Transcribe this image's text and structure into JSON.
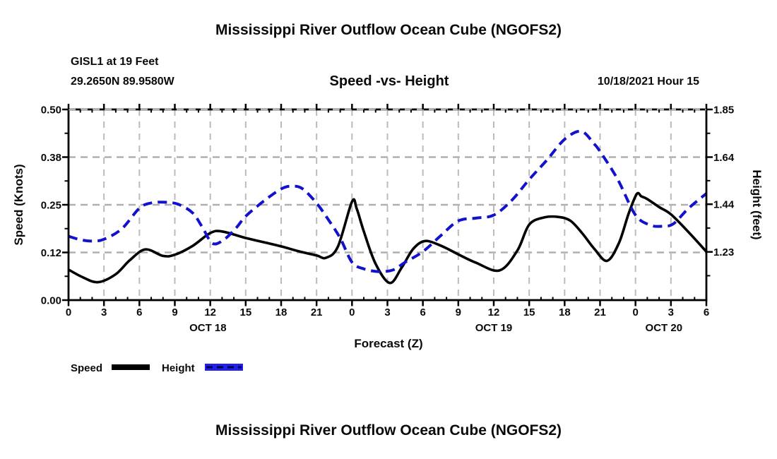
{
  "header": {
    "title": "Mississippi River Outflow Ocean Cube (NGOFS2)",
    "station": "GISL1 at 19 Feet",
    "coordinates": "29.2650N  89.9580W",
    "subtitle": "Speed -vs- Height",
    "datetime": "10/18/2021 Hour 15"
  },
  "footer": {
    "next_chart_title": "Mississippi River Outflow Ocean Cube (NGOFS2)"
  },
  "chart_data": {
    "type": "line",
    "title": "Speed -vs- Height",
    "xlabel": "Forecast (Z)",
    "grid": {
      "show": true,
      "color": "#b0b0b0"
    },
    "x_axis": {
      "start": "OCT 18 00Z",
      "end": "OCT 20 06Z",
      "tick_step_hours": 3,
      "minor_tick_step_hours": 1,
      "ticks": [
        {
          "t": 0,
          "label": "0"
        },
        {
          "t": 3,
          "label": "3"
        },
        {
          "t": 6,
          "label": "6"
        },
        {
          "t": 9,
          "label": "9"
        },
        {
          "t": 12,
          "label": "12"
        },
        {
          "t": 15,
          "label": "15"
        },
        {
          "t": 18,
          "label": "18"
        },
        {
          "t": 21,
          "label": "21"
        },
        {
          "t": 24,
          "label": "0"
        },
        {
          "t": 27,
          "label": "3"
        },
        {
          "t": 30,
          "label": "6"
        },
        {
          "t": 33,
          "label": "9"
        },
        {
          "t": 36,
          "label": "12"
        },
        {
          "t": 39,
          "label": "15"
        },
        {
          "t": 42,
          "label": "18"
        },
        {
          "t": 45,
          "label": "21"
        },
        {
          "t": 48,
          "label": "0"
        },
        {
          "t": 51,
          "label": "3"
        },
        {
          "t": 54,
          "label": "6"
        }
      ],
      "day_labels": [
        {
          "t": 11.8,
          "label": "OCT 18"
        },
        {
          "t": 36,
          "label": "OCT 19"
        },
        {
          "t": 50.4,
          "label": "OCT 20"
        }
      ]
    },
    "left_axis": {
      "label": "Speed (Knots)",
      "min": 0.0,
      "max": 0.5,
      "ticks": [
        {
          "v": 0.0,
          "label": "0.00"
        },
        {
          "v": 0.125,
          "label": "0.12"
        },
        {
          "v": 0.25,
          "label": "0.25"
        },
        {
          "v": 0.375,
          "label": "0.38"
        },
        {
          "v": 0.5,
          "label": "0.50"
        }
      ]
    },
    "right_axis": {
      "label": "Height (feet)",
      "min": 1.02,
      "max": 1.85,
      "ticks": [
        {
          "v": 1.23,
          "label": "1.23"
        },
        {
          "v": 1.4375,
          "label": "1.44"
        },
        {
          "v": 1.6425,
          "label": "1.64"
        },
        {
          "v": 1.85,
          "label": "1.85"
        }
      ]
    },
    "legend": {
      "position": "bottom-left"
    },
    "series": [
      {
        "name": "Speed",
        "unit": "knots",
        "axis": "left",
        "color": "#000000",
        "line_style": "solid",
        "points": [
          [
            0,
            0.08
          ],
          [
            1.2,
            0.06
          ],
          [
            2.5,
            0.047
          ],
          [
            4,
            0.068
          ],
          [
            5.2,
            0.105
          ],
          [
            6.5,
            0.133
          ],
          [
            8,
            0.116
          ],
          [
            9,
            0.119
          ],
          [
            10.5,
            0.142
          ],
          [
            12,
            0.176
          ],
          [
            13,
            0.18
          ],
          [
            15,
            0.163
          ],
          [
            16.5,
            0.152
          ],
          [
            18,
            0.141
          ],
          [
            19.5,
            0.128
          ],
          [
            21,
            0.117
          ],
          [
            21.8,
            0.111
          ],
          [
            22.8,
            0.14
          ],
          [
            24,
            0.258
          ],
          [
            24.4,
            0.24
          ],
          [
            25,
            0.18
          ],
          [
            26,
            0.095
          ],
          [
            27.2,
            0.045
          ],
          [
            28.2,
            0.085
          ],
          [
            29.2,
            0.135
          ],
          [
            30.2,
            0.155
          ],
          [
            31.5,
            0.143
          ],
          [
            33,
            0.12
          ],
          [
            34.5,
            0.098
          ],
          [
            36.5,
            0.078
          ],
          [
            38,
            0.13
          ],
          [
            39,
            0.198
          ],
          [
            40.3,
            0.217
          ],
          [
            41.5,
            0.218
          ],
          [
            42.5,
            0.208
          ],
          [
            43.5,
            0.175
          ],
          [
            44.5,
            0.135
          ],
          [
            45.6,
            0.103
          ],
          [
            46.6,
            0.15
          ],
          [
            47.4,
            0.225
          ],
          [
            48.1,
            0.278
          ],
          [
            48.5,
            0.272
          ],
          [
            49,
            0.265
          ],
          [
            50,
            0.244
          ],
          [
            51,
            0.225
          ],
          [
            52.5,
            0.178
          ],
          [
            54,
            0.127
          ]
        ]
      },
      {
        "name": "Height",
        "unit": "feet",
        "axis": "right",
        "color": "#1212cc",
        "line_style": "dashed",
        "points": [
          [
            0,
            1.298
          ],
          [
            1,
            1.283
          ],
          [
            2,
            1.277
          ],
          [
            3,
            1.285
          ],
          [
            4.5,
            1.33
          ],
          [
            6,
            1.42
          ],
          [
            7,
            1.443
          ],
          [
            8.2,
            1.446
          ],
          [
            9.3,
            1.437
          ],
          [
            10.5,
            1.4
          ],
          [
            11.3,
            1.34
          ],
          [
            12.2,
            1.267
          ],
          [
            13.2,
            1.285
          ],
          [
            14.2,
            1.335
          ],
          [
            15,
            1.385
          ],
          [
            16.5,
            1.45
          ],
          [
            18,
            1.504
          ],
          [
            18.9,
            1.516
          ],
          [
            19.8,
            1.505
          ],
          [
            21,
            1.442
          ],
          [
            22,
            1.37
          ],
          [
            23,
            1.29
          ],
          [
            24,
            1.185
          ],
          [
            25,
            1.156
          ],
          [
            26.3,
            1.144
          ],
          [
            27.5,
            1.152
          ],
          [
            28.5,
            1.185
          ],
          [
            30,
            1.231
          ],
          [
            31.5,
            1.3
          ],
          [
            33,
            1.365
          ],
          [
            34.5,
            1.377
          ],
          [
            36,
            1.39
          ],
          [
            37.5,
            1.453
          ],
          [
            39,
            1.545
          ],
          [
            40.5,
            1.63
          ],
          [
            42,
            1.72
          ],
          [
            43.4,
            1.755
          ],
          [
            44.5,
            1.7
          ],
          [
            45,
            1.667
          ],
          [
            46.5,
            1.545
          ],
          [
            48,
            1.39
          ],
          [
            49.3,
            1.346
          ],
          [
            50.3,
            1.342
          ],
          [
            51.2,
            1.352
          ],
          [
            52.5,
            1.42
          ],
          [
            54,
            1.484
          ]
        ]
      }
    ]
  }
}
